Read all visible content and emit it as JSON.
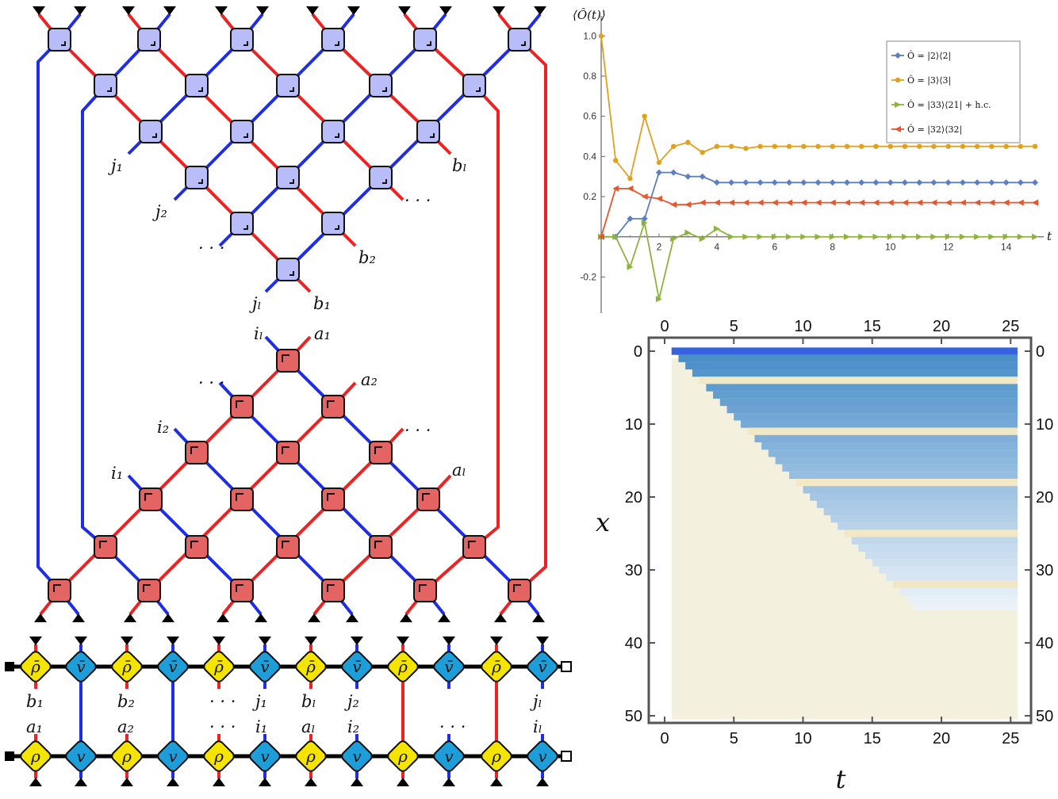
{
  "colors": {
    "blue_wire": "#1f2ee6",
    "red_wire": "#ee2222",
    "u_gate": "#b8bcf8",
    "w_gate": "#e46464",
    "rho": "#f4e400",
    "v": "#1e9ed8",
    "line_blue": "#5b7fc2",
    "line_orange": "#e0a020",
    "line_green": "#8ab43a",
    "line_red": "#e4572e"
  },
  "labels": {
    "j1": "j₁",
    "j2": "j₂",
    "jl": "jₗ",
    "b1": "b₁",
    "b2": "b₂",
    "bl": "bₗ",
    "i1": "i₁",
    "i2": "i₂",
    "il": "iₗ",
    "a1": "a₁",
    "a2": "a₂",
    "al": "aₗ",
    "dots": "· · ·"
  },
  "chain": {
    "top": [
      "ρ̄",
      "v̄",
      "ρ̄",
      "v̄",
      "ρ̄",
      "v̄",
      "ρ̄",
      "v̄",
      "ρ̄",
      "v̄",
      "ρ̄",
      "v̄"
    ],
    "bottom": [
      "ρ",
      "v",
      "ρ",
      "v",
      "ρ",
      "v",
      "ρ",
      "v",
      "ρ",
      "v",
      "ρ",
      "v"
    ],
    "top_labels": [
      "b₁",
      "",
      "b₂",
      "",
      "· · ·",
      "j₁",
      "bₗ",
      "j₂",
      "",
      "",
      "",
      "jₗ"
    ],
    "bottom_labels": [
      "a₁",
      "",
      "a₂",
      "",
      "· · ·",
      "i₁",
      "aₗ",
      "i₂",
      "",
      "· · ·",
      "",
      "iₗ"
    ]
  },
  "chart_data": [
    {
      "type": "line",
      "ylabel": "⟨Ô(t)⟩",
      "xlabel": "t",
      "xlim": [
        0,
        15.3
      ],
      "ylim": [
        -0.38,
        1.1
      ],
      "x_ticks": [
        2,
        4,
        6,
        8,
        10,
        12,
        14
      ],
      "y_ticks": [
        -0.2,
        0.2,
        0.4,
        0.6,
        0.8,
        1.0
      ],
      "y_tick_labels": [
        "-0.2",
        "0.2",
        "0.4",
        "0.6",
        "0.8",
        "1.0"
      ],
      "legend_position": "top-right",
      "x": [
        0,
        0.5,
        1,
        1.5,
        2,
        2.5,
        3,
        3.5,
        4,
        4.5,
        5,
        5.5,
        6,
        6.5,
        7,
        7.5,
        8,
        8.5,
        9,
        9.5,
        10,
        10.5,
        11,
        11.5,
        12,
        12.5,
        13,
        13.5,
        14,
        14.5,
        15
      ],
      "series": [
        {
          "name": "Ô = |2⟩⟨2|",
          "values": [
            0,
            0,
            0.09,
            0.09,
            0.32,
            0.32,
            0.3,
            0.3,
            0.27,
            0.27,
            0.27,
            0.27,
            0.27,
            0.27,
            0.27,
            0.27,
            0.27,
            0.27,
            0.27,
            0.27,
            0.27,
            0.27,
            0.27,
            0.27,
            0.27,
            0.27,
            0.27,
            0.27,
            0.27,
            0.27,
            0.27
          ]
        },
        {
          "name": "Ô = |3⟩⟨3|",
          "values": [
            1.0,
            0.38,
            0.29,
            0.6,
            0.37,
            0.45,
            0.47,
            0.42,
            0.45,
            0.45,
            0.44,
            0.45,
            0.45,
            0.45,
            0.45,
            0.45,
            0.45,
            0.45,
            0.45,
            0.45,
            0.45,
            0.45,
            0.45,
            0.45,
            0.45,
            0.45,
            0.45,
            0.45,
            0.45,
            0.45,
            0.45
          ]
        },
        {
          "name": "Ô = |33⟩⟨21| + h.c.",
          "values": [
            0,
            0,
            -0.15,
            0.07,
            -0.31,
            -0.01,
            0.02,
            -0.01,
            0.04,
            0,
            0,
            0,
            0,
            0,
            0,
            0,
            0,
            0,
            0,
            0,
            0,
            0,
            0,
            0,
            0,
            0,
            0,
            0,
            0,
            0,
            0
          ]
        },
        {
          "name": "Ô = |32⟩⟨32|",
          "values": [
            0,
            0.24,
            0.24,
            0.2,
            0.19,
            0.16,
            0.16,
            0.17,
            0.17,
            0.17,
            0.17,
            0.17,
            0.17,
            0.17,
            0.17,
            0.17,
            0.17,
            0.17,
            0.17,
            0.17,
            0.17,
            0.17,
            0.17,
            0.17,
            0.17,
            0.17,
            0.17,
            0.17,
            0.17,
            0.17,
            0.17
          ]
        }
      ]
    },
    {
      "type": "heatmap",
      "xlabel": "t",
      "ylabel": "x",
      "xlim": [
        0,
        25.5
      ],
      "ylim": [
        0,
        51
      ],
      "x_ticks": [
        0,
        5,
        10,
        15,
        20,
        25
      ],
      "y_ticks": [
        0,
        10,
        20,
        30,
        40,
        50
      ],
      "front": "front reaches x ≈ 2t; blue rows alternate with beige rows",
      "beige_rows": [
        4,
        11,
        18,
        25,
        32
      ]
    }
  ]
}
